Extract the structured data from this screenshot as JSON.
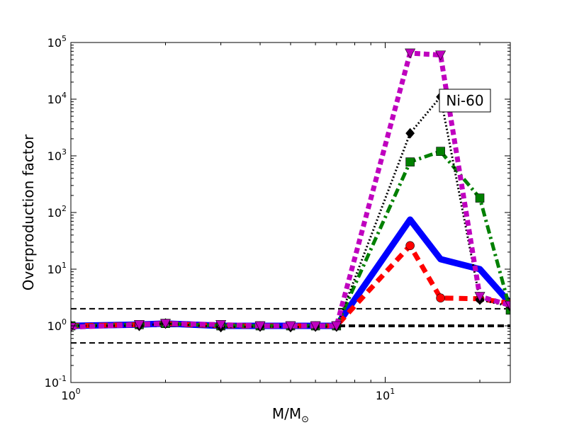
{
  "chart_data": {
    "type": "line",
    "title": "",
    "xlabel": "M/M",
    "xlabel_symbol": "⊙",
    "ylabel": "Overproduction factor",
    "xscale": "log",
    "yscale": "log",
    "xlim": [
      1,
      25
    ],
    "ylim": [
      0.1,
      100000
    ],
    "x_ticks": [
      {
        "value": 1,
        "base": "10",
        "exp": "0"
      },
      {
        "value": 10,
        "base": "10",
        "exp": "1"
      }
    ],
    "y_ticks": [
      {
        "value": 0.1,
        "base": "10",
        "exp": "-1"
      },
      {
        "value": 1,
        "base": "10",
        "exp": "0"
      },
      {
        "value": 10,
        "base": "10",
        "exp": "1"
      },
      {
        "value": 100,
        "base": "10",
        "exp": "2"
      },
      {
        "value": 1000,
        "base": "10",
        "exp": "3"
      },
      {
        "value": 10000,
        "base": "10",
        "exp": "4"
      },
      {
        "value": 100000,
        "base": "10",
        "exp": "5"
      }
    ],
    "annotation": "Ni-60",
    "grid": false,
    "reference_lines": [
      {
        "y": 2,
        "style": "dashed",
        "color": "#000000"
      },
      {
        "y": 1,
        "style": "dashed-bold",
        "color": "#000000"
      },
      {
        "y": 0.5,
        "style": "dashed",
        "color": "#000000"
      }
    ],
    "series": [
      {
        "color": "#0000ff",
        "line": "solid",
        "marker": "none",
        "x": [
          1,
          1.65,
          2,
          3,
          4,
          5,
          6,
          7,
          12,
          15,
          20,
          25
        ],
        "y": [
          1.0,
          1.05,
          1.1,
          1.0,
          1.0,
          1.0,
          1.0,
          1.0,
          75,
          15,
          10,
          2.5
        ]
      },
      {
        "color": "#ff0000",
        "line": "dashed",
        "marker": "circle",
        "x": [
          1,
          1.65,
          2,
          3,
          4,
          5,
          6,
          7,
          12,
          15,
          20,
          25
        ],
        "y": [
          1.0,
          1.05,
          1.1,
          1.0,
          1.0,
          1.0,
          1.0,
          1.0,
          26,
          3.1,
          3.0,
          2.5
        ]
      },
      {
        "color": "#008000",
        "line": "dashdot",
        "marker": "square",
        "x": [
          1,
          1.65,
          2,
          3,
          4,
          5,
          6,
          7,
          12,
          15,
          20,
          25
        ],
        "y": [
          1.0,
          1.05,
          1.1,
          1.0,
          1.0,
          1.0,
          1.0,
          1.0,
          780,
          1200,
          180,
          1.9
        ]
      },
      {
        "color": "#000000",
        "line": "dotted",
        "marker": "diamond",
        "x": [
          1,
          1.65,
          2,
          3,
          4,
          5,
          6,
          7,
          12,
          15,
          20,
          25
        ],
        "y": [
          1.0,
          1.0,
          1.1,
          0.95,
          0.97,
          0.95,
          0.97,
          0.97,
          2500,
          11000,
          2.9,
          2.2
        ]
      },
      {
        "color": "#bf00bf",
        "line": "dotted-heavy",
        "marker": "triangle-down",
        "x": [
          1,
          1.65,
          2,
          3,
          4,
          5,
          6,
          7,
          12,
          15,
          20,
          25
        ],
        "y": [
          0.95,
          1.05,
          1.1,
          1.05,
          1.0,
          1.0,
          1.0,
          1.0,
          65000,
          60000,
          3.3,
          2.3
        ]
      }
    ]
  }
}
